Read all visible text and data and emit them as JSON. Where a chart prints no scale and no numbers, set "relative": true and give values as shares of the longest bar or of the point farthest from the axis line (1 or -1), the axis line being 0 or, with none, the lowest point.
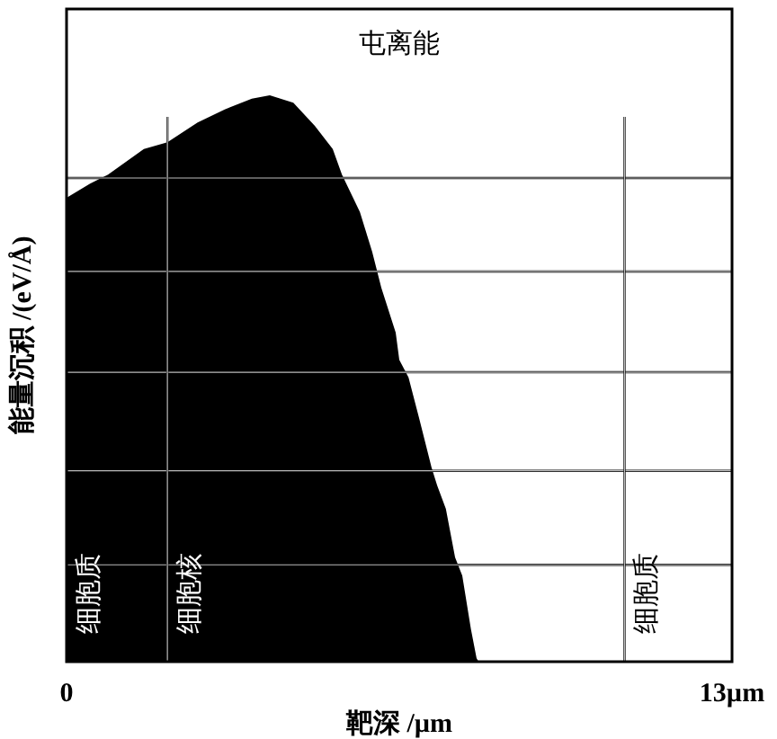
{
  "chart_data": {
    "type": "area",
    "title": "屯离能",
    "xlabel": "靶深 /µm",
    "ylabel": "能量沉积 /(eV/Å)",
    "relative": true,
    "xlim": [
      0,
      13
    ],
    "xticks": [
      0,
      {
        "value": 13,
        "label": "13µm"
      }
    ],
    "tick_labels": "x",
    "series": [
      {
        "color": "#000000",
        "x": [
          0,
          0.46,
          0.81,
          1.51,
          1.97,
          2.56,
          3.09,
          3.62,
          3.97,
          4.43,
          4.85,
          5.2,
          5.38,
          5.73,
          5.97,
          6.15,
          6.43,
          6.5,
          6.68,
          6.89,
          7.13,
          7.24,
          7.41,
          7.59,
          7.73,
          7.9,
          8.01,
          8.05
        ],
        "values": [
          0.819,
          0.844,
          0.86,
          0.905,
          0.917,
          0.952,
          0.975,
          0.994,
          1,
          0.987,
          0.946,
          0.905,
          0.86,
          0.794,
          0.724,
          0.66,
          0.581,
          0.533,
          0.502,
          0.429,
          0.343,
          0.311,
          0.27,
          0.184,
          0.152,
          0.057,
          0.006,
          0
        ]
      }
    ],
    "ref_lines": [
      {
        "axis": "y",
        "value": 0.854,
        "color": "#000000"
      },
      {
        "axis": "y",
        "value": 0.689,
        "color": "#000000"
      },
      {
        "axis": "y",
        "value": 0.511,
        "color": "#000000"
      },
      {
        "axis": "y",
        "value": 0.337,
        "color": "#000000"
      },
      {
        "axis": "y",
        "value": 0.171,
        "color": "#000000"
      },
      {
        "axis": "x",
        "value": 1.97,
        "color": "#000000"
      },
      {
        "axis": "x",
        "value": 10.9,
        "color": "#000000"
      }
    ],
    "annotations": [
      "细胞质",
      "细胞核",
      "细胞质"
    ]
  }
}
